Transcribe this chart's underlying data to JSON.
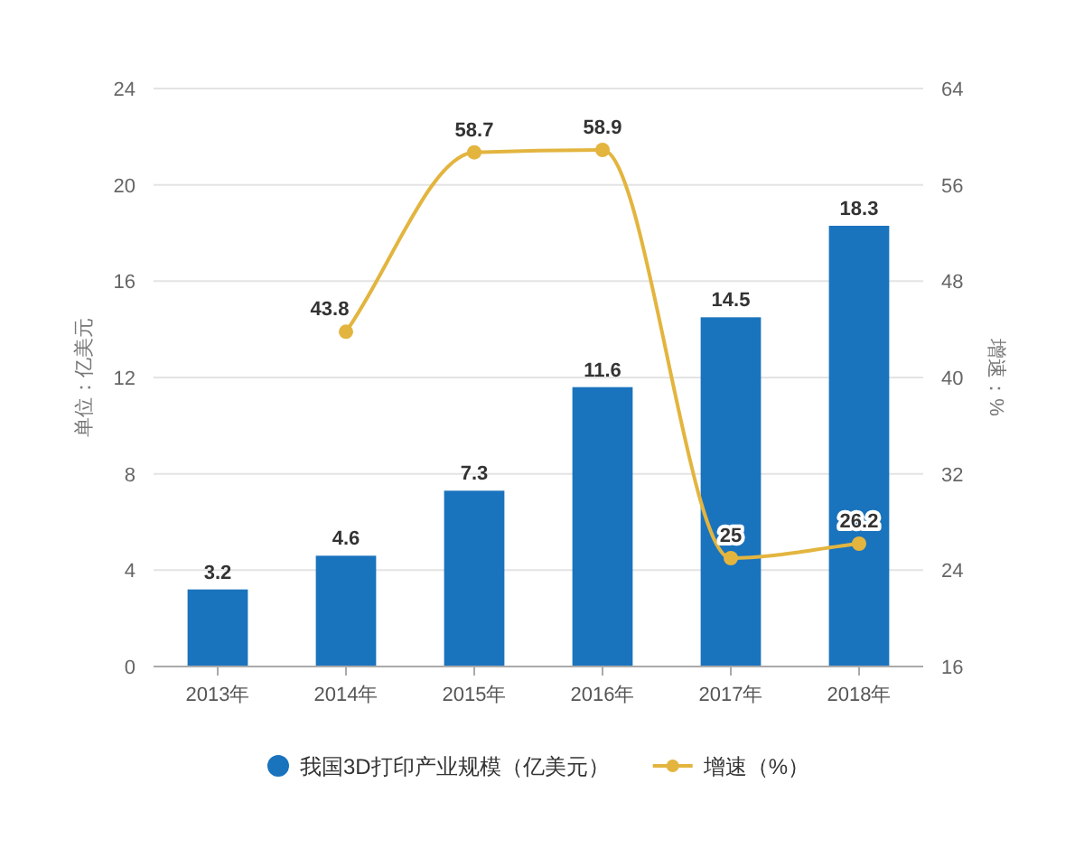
{
  "chart_data": {
    "type": "bar",
    "categories": [
      "2013年",
      "2014年",
      "2015年",
      "2016年",
      "2017年",
      "2018年"
    ],
    "series": [
      {
        "name": "我国3D打印产业规模（亿美元）",
        "color": "#1a73bd",
        "values": [
          3.2,
          4.6,
          7.3,
          11.6,
          14.5,
          18.3
        ]
      },
      {
        "name": "增速（%）",
        "type": "line",
        "axis": "y2",
        "color": "#e3b53f",
        "values": [
          null,
          43.8,
          58.7,
          58.9,
          25,
          26.2
        ]
      }
    ],
    "ylabel": "单位：亿美元",
    "y2label": "增速：%",
    "ylim": [
      0,
      24
    ],
    "yticks": [
      0,
      4,
      8,
      12,
      16,
      20,
      24
    ],
    "y2lim": [
      16,
      64
    ],
    "y2ticks": [
      16,
      24,
      32,
      40,
      48,
      56,
      64
    ],
    "grid": "y",
    "legend": "bottom",
    "marker": "circle",
    "data_labels": true
  }
}
